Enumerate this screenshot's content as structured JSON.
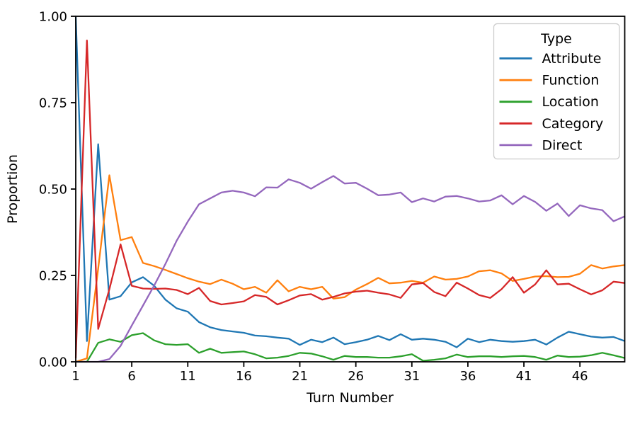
{
  "figure": {
    "title": "",
    "xlabel": "Turn Number",
    "ylabel": "Proportion"
  },
  "chart_data": {
    "type": "line",
    "title": "",
    "xlabel": "Turn Number",
    "ylabel": "Proportion",
    "xlim": [
      1,
      50
    ],
    "ylim": [
      0.0,
      1.0
    ],
    "grid": false,
    "legend": {
      "title": "Type",
      "position": "upper right"
    },
    "xticks": [
      1,
      6,
      11,
      16,
      21,
      26,
      31,
      36,
      41,
      46
    ],
    "yticks": {
      "values": [
        0.0,
        0.25,
        0.5,
        0.75,
        1.0
      ],
      "labels": [
        "0.00",
        "0.25",
        "0.50",
        "0.75",
        "1.00"
      ]
    },
    "x": [
      1,
      2,
      3,
      4,
      5,
      6,
      7,
      8,
      9,
      10,
      11,
      12,
      13,
      14,
      15,
      16,
      17,
      18,
      19,
      20,
      21,
      22,
      23,
      24,
      25,
      26,
      27,
      28,
      29,
      30,
      31,
      32,
      33,
      34,
      35,
      36,
      37,
      38,
      39,
      40,
      41,
      42,
      43,
      44,
      45,
      46,
      47,
      48,
      49,
      50
    ],
    "series": [
      {
        "name": "Attribute",
        "color": "#1f77b4",
        "values": [
          1.0,
          0.06,
          0.63,
          0.18,
          0.19,
          0.23,
          0.245,
          0.22,
          0.18,
          0.155,
          0.145,
          0.115,
          0.1,
          0.092,
          0.088,
          0.084,
          0.076,
          0.074,
          0.07,
          0.067,
          0.049,
          0.064,
          0.057,
          0.07,
          0.051,
          0.057,
          0.064,
          0.075,
          0.063,
          0.08,
          0.064,
          0.067,
          0.064,
          0.058,
          0.042,
          0.067,
          0.057,
          0.064,
          0.06,
          0.058,
          0.06,
          0.064,
          0.05,
          0.07,
          0.087,
          0.08,
          0.073,
          0.07,
          0.072,
          0.06
        ]
      },
      {
        "name": "Function",
        "color": "#ff7f0e",
        "values": [
          0.0,
          0.01,
          0.27,
          0.54,
          0.352,
          0.361,
          0.286,
          0.277,
          0.266,
          0.254,
          0.242,
          0.232,
          0.225,
          0.238,
          0.226,
          0.21,
          0.217,
          0.2,
          0.236,
          0.204,
          0.217,
          0.21,
          0.217,
          0.183,
          0.187,
          0.209,
          0.225,
          0.243,
          0.227,
          0.229,
          0.234,
          0.229,
          0.247,
          0.238,
          0.24,
          0.247,
          0.262,
          0.265,
          0.256,
          0.234,
          0.24,
          0.247,
          0.248,
          0.245,
          0.246,
          0.255,
          0.28,
          0.27,
          0.276,
          0.28
        ]
      },
      {
        "name": "Location",
        "color": "#2ca02c",
        "values": [
          0.0,
          0.0,
          0.055,
          0.065,
          0.058,
          0.077,
          0.083,
          0.062,
          0.051,
          0.049,
          0.051,
          0.026,
          0.038,
          0.026,
          0.028,
          0.03,
          0.022,
          0.01,
          0.012,
          0.017,
          0.026,
          0.024,
          0.016,
          0.006,
          0.017,
          0.014,
          0.014,
          0.012,
          0.012,
          0.016,
          0.022,
          0.003,
          0.006,
          0.01,
          0.021,
          0.014,
          0.016,
          0.016,
          0.014,
          0.016,
          0.017,
          0.014,
          0.006,
          0.018,
          0.014,
          0.015,
          0.019,
          0.026,
          0.019,
          0.011
        ]
      },
      {
        "name": "Category",
        "color": "#d62728",
        "values": [
          0.01,
          0.93,
          0.095,
          0.21,
          0.34,
          0.22,
          0.212,
          0.211,
          0.212,
          0.208,
          0.196,
          0.214,
          0.176,
          0.166,
          0.17,
          0.175,
          0.193,
          0.188,
          0.166,
          0.178,
          0.192,
          0.196,
          0.18,
          0.188,
          0.198,
          0.203,
          0.206,
          0.2,
          0.195,
          0.185,
          0.224,
          0.228,
          0.202,
          0.19,
          0.229,
          0.212,
          0.193,
          0.185,
          0.21,
          0.245,
          0.2,
          0.224,
          0.265,
          0.224,
          0.226,
          0.21,
          0.195,
          0.207,
          0.232,
          0.228
        ]
      },
      {
        "name": "Direct",
        "color": "#9467bd",
        "values": [
          0.0,
          0.0,
          0.0,
          0.008,
          0.046,
          0.105,
          0.163,
          0.221,
          0.283,
          0.35,
          0.406,
          0.456,
          0.473,
          0.49,
          0.495,
          0.49,
          0.479,
          0.505,
          0.504,
          0.528,
          0.518,
          0.501,
          0.52,
          0.538,
          0.516,
          0.518,
          0.501,
          0.482,
          0.484,
          0.49,
          0.462,
          0.473,
          0.464,
          0.478,
          0.48,
          0.473,
          0.464,
          0.467,
          0.482,
          0.456,
          0.48,
          0.463,
          0.437,
          0.458,
          0.422,
          0.453,
          0.444,
          0.439,
          0.407,
          0.421
        ]
      }
    ]
  }
}
